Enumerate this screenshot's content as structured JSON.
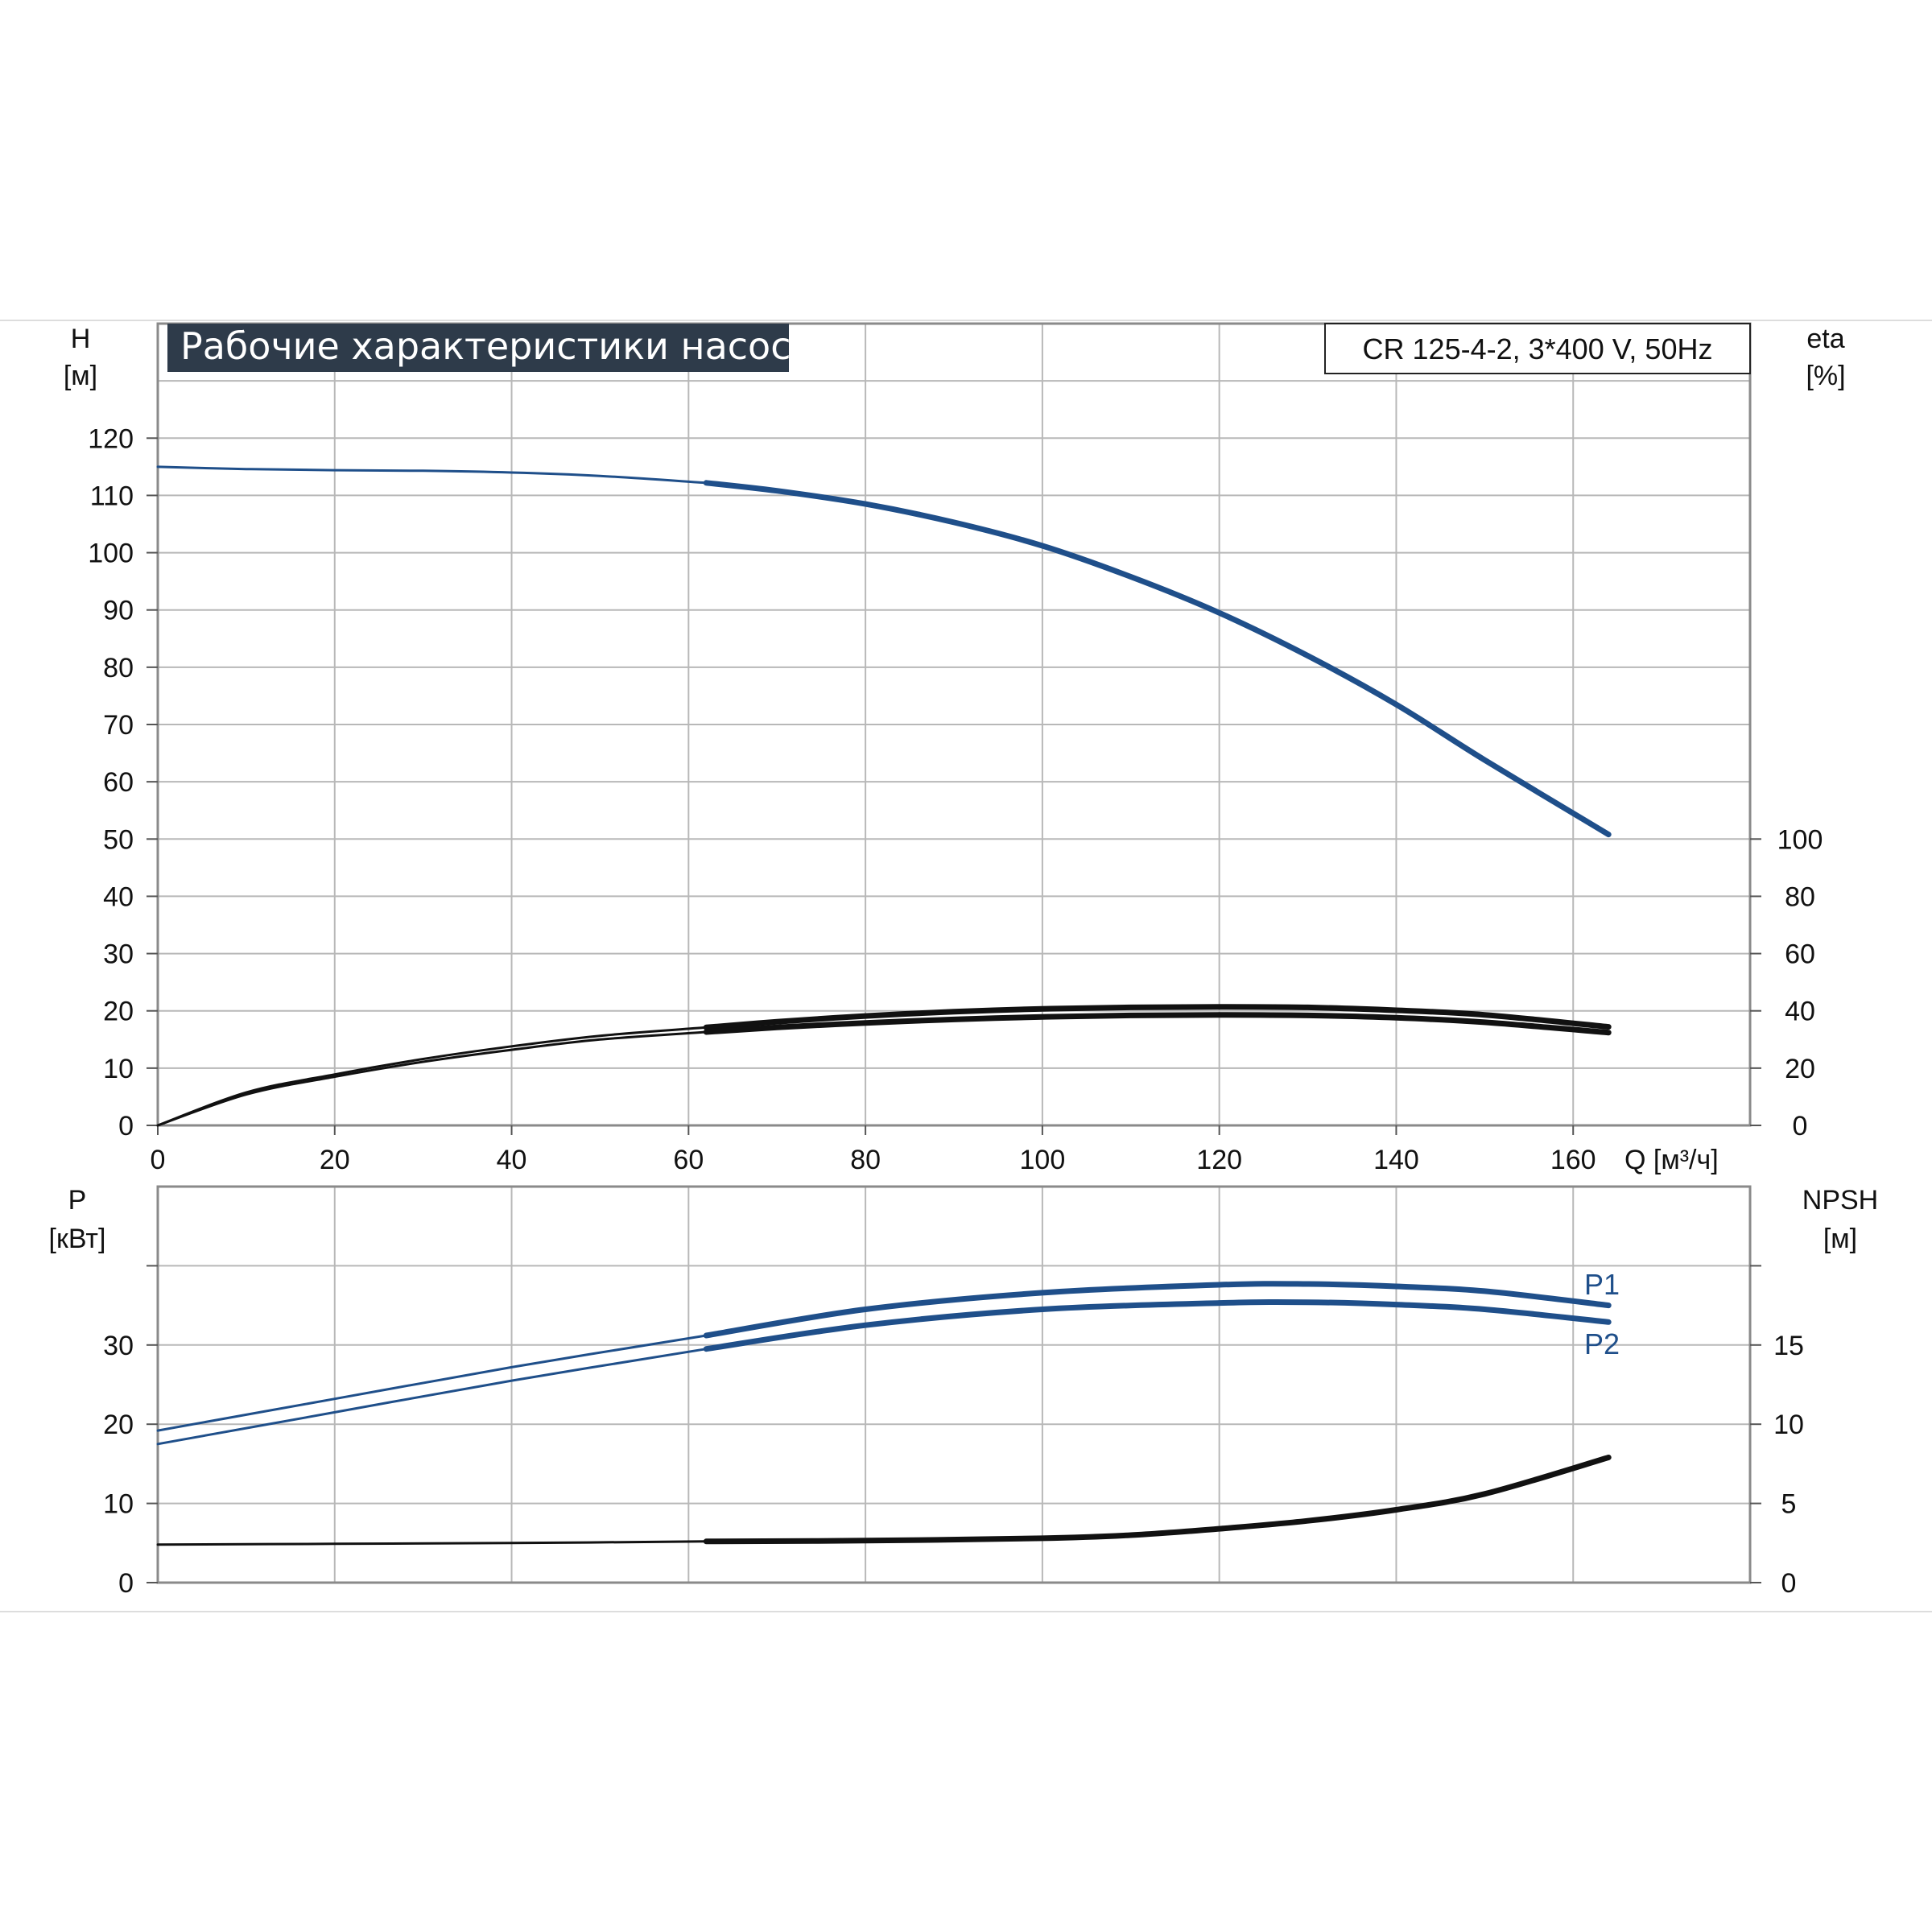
{
  "title": "Рабочие характеристики насоса",
  "model": "CR 125-4-2, 3*400 V, 50Hz",
  "colors": {
    "blue": "#1f4f8a",
    "black": "#111111",
    "grid": "#b8b8b8",
    "title_bg": "#2e3b4a"
  },
  "chart_data": [
    {
      "type": "line",
      "panel": "top",
      "x_axis": {
        "label": "Q [м³/ч]",
        "range": [
          0,
          180
        ],
        "ticks": [
          0,
          20,
          40,
          60,
          80,
          100,
          120,
          140,
          160
        ]
      },
      "y_left": {
        "label_line1": "H",
        "label_line2": "[м]",
        "range": [
          0,
          140
        ],
        "ticks": [
          0,
          10,
          20,
          30,
          40,
          50,
          60,
          70,
          80,
          90,
          100,
          110,
          120
        ]
      },
      "y_right": {
        "label_line1": "eta",
        "label_line2": "[%]",
        "range": [
          0,
          280
        ],
        "ticks": [
          0,
          20,
          40,
          60,
          80,
          100
        ]
      },
      "grid": true,
      "series": [
        {
          "id": "H",
          "axis": "left",
          "color": "blue",
          "x": [
            0,
            10,
            20,
            30,
            40,
            50,
            62,
            70,
            80,
            90,
            100,
            110,
            120,
            130,
            140,
            150,
            164
          ],
          "y": [
            115,
            114.6,
            114.4,
            114.3,
            114,
            113.4,
            112.2,
            110.8,
            108.5,
            105.3,
            101.2,
            95.8,
            89.5,
            82,
            73.5,
            63.8,
            50.8
          ]
        },
        {
          "id": "eta_upper",
          "axis": "right",
          "color": "black",
          "x": [
            0,
            10,
            20,
            30,
            40,
            50,
            62,
            70,
            80,
            90,
            100,
            110,
            120,
            130,
            140,
            150,
            164
          ],
          "y": [
            0,
            11.5,
            17.8,
            23.2,
            27.6,
            31.3,
            34.2,
            36.2,
            38.2,
            39.7,
            40.7,
            41.2,
            41.4,
            41.2,
            40.2,
            38.6,
            34.4
          ]
        },
        {
          "id": "eta_lower",
          "axis": "right",
          "color": "black",
          "x": [
            0,
            10,
            20,
            30,
            40,
            50,
            62,
            70,
            80,
            90,
            100,
            110,
            120,
            130,
            140,
            150,
            164
          ],
          "y": [
            0,
            10.8,
            17,
            22.2,
            26.4,
            30,
            32.6,
            34.2,
            35.8,
            37,
            37.9,
            38.4,
            38.6,
            38.4,
            37.6,
            36,
            32.4
          ]
        }
      ]
    },
    {
      "type": "line",
      "panel": "bottom",
      "x_axis": {
        "range": [
          0,
          180
        ]
      },
      "y_left": {
        "label_line1": "P",
        "label_line2": "[кВт]",
        "range": [
          0,
          50
        ],
        "ticks": [
          0,
          10,
          20,
          30
        ]
      },
      "y_right": {
        "label_line1": "NPSH",
        "label_line2": "[м]",
        "range": [
          0,
          25
        ],
        "ticks": [
          0,
          5,
          10,
          15
        ]
      },
      "grid": true,
      "series": [
        {
          "id": "P1",
          "name": "P1",
          "axis": "left",
          "color": "blue",
          "x": [
            0,
            20,
            40,
            62,
            80,
            100,
            120,
            130,
            140,
            150,
            164
          ],
          "y": [
            19.2,
            23.2,
            27.2,
            31.2,
            34.5,
            36.6,
            37.6,
            37.7,
            37.4,
            36.8,
            35
          ]
        },
        {
          "id": "P2",
          "name": "P2",
          "axis": "left",
          "color": "blue",
          "x": [
            0,
            20,
            40,
            62,
            80,
            100,
            120,
            130,
            140,
            150,
            164
          ],
          "y": [
            17.5,
            21.5,
            25.5,
            29.5,
            32.5,
            34.5,
            35.3,
            35.4,
            35.1,
            34.5,
            32.9
          ]
        },
        {
          "id": "NPSH",
          "axis": "right",
          "color": "black",
          "x": [
            0,
            20,
            40,
            62,
            80,
            100,
            110,
            120,
            130,
            140,
            150,
            164
          ],
          "y": [
            2.4,
            2.45,
            2.5,
            2.6,
            2.65,
            2.8,
            3.0,
            3.4,
            3.9,
            4.6,
            5.6,
            7.9
          ]
        }
      ]
    }
  ]
}
